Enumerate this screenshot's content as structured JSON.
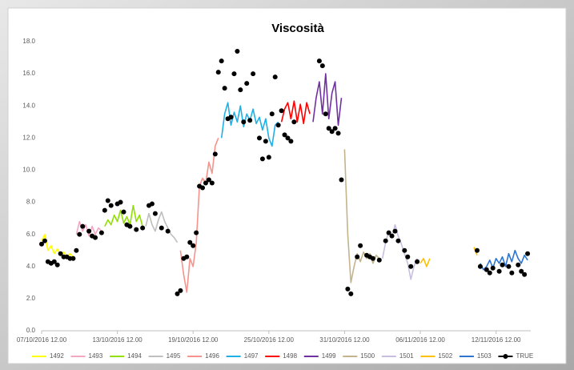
{
  "chart_data": {
    "type": "line",
    "title": "Viscosità",
    "legend": "bottom",
    "xlim": [
      "2016-10-07T12:00",
      "2016-11-15T06:00"
    ],
    "xticks": [
      {
        "value": "2016-10-07T12:00",
        "label": "07/10/2016 12.00"
      },
      {
        "value": "2016-10-13T12:00",
        "label": "13/10/2016 12.00"
      },
      {
        "value": "2016-10-19T12:00",
        "label": "19/10/2016 12.00"
      },
      {
        "value": "2016-10-25T12:00",
        "label": "25/10/2016 12.00"
      },
      {
        "value": "2016-10-31T12:00",
        "label": "31/10/2016 12.00"
      },
      {
        "value": "2016-11-06T12:00",
        "label": "06/11/2016 12.00"
      },
      {
        "value": "2016-11-12T12:00",
        "label": "12/11/2016 12.00"
      }
    ],
    "ylim": [
      0,
      18
    ],
    "yticks": [
      {
        "value": 0,
        "label": "0.0"
      },
      {
        "value": 2,
        "label": "2.0"
      },
      {
        "value": 4,
        "label": "4.0"
      },
      {
        "value": 6,
        "label": "6.0"
      },
      {
        "value": 8,
        "label": "8.0"
      },
      {
        "value": 10,
        "label": "10.0"
      },
      {
        "value": 12,
        "label": "12.0"
      },
      {
        "value": 14,
        "label": "14.0"
      },
      {
        "value": 16,
        "label": "16.0"
      },
      {
        "value": 18,
        "label": "18.0"
      }
    ],
    "series": [
      {
        "name": "1492",
        "color": "#ffff00",
        "x": [
          "2016-10-07T12:00",
          "2016-10-07T18:00",
          "2016-10-08T00:00",
          "2016-10-08T06:00",
          "2016-10-08T12:00",
          "2016-10-08T18:00",
          "2016-10-09T00:00",
          "2016-10-09T06:00",
          "2016-10-09T12:00",
          "2016-10-09T18:00",
          "2016-10-10T00:00"
        ],
        "values": [
          5.6,
          6.0,
          5.0,
          5.3,
          4.8,
          5.1,
          4.7,
          4.9,
          4.6,
          4.8,
          4.6
        ]
      },
      {
        "name": "1493",
        "color": "#f2a7c3",
        "x": [
          "2016-10-10T06:00",
          "2016-10-10T12:00",
          "2016-10-10T18:00",
          "2016-10-11T00:00",
          "2016-10-11T06:00",
          "2016-10-11T12:00",
          "2016-10-11T18:00",
          "2016-10-12T00:00",
          "2016-10-12T06:00"
        ],
        "values": [
          6.0,
          6.8,
          6.2,
          6.6,
          5.9,
          6.5,
          6.0,
          6.4,
          6.2
        ]
      },
      {
        "name": "1494",
        "color": "#92e000",
        "x": [
          "2016-10-12T12:00",
          "2016-10-12T18:00",
          "2016-10-13T00:00",
          "2016-10-13T06:00",
          "2016-10-13T12:00",
          "2016-10-13T18:00",
          "2016-10-14T00:00",
          "2016-10-14T06:00",
          "2016-10-14T12:00",
          "2016-10-14T18:00",
          "2016-10-15T00:00",
          "2016-10-15T06:00",
          "2016-10-15T12:00"
        ],
        "values": [
          6.5,
          6.9,
          6.6,
          7.2,
          6.8,
          7.5,
          6.7,
          7.1,
          6.6,
          7.8,
          6.8,
          7.2,
          6.5
        ]
      },
      {
        "name": "1495",
        "color": "#bfbfbf",
        "x": [
          "2016-10-15T18:00",
          "2016-10-16T00:00",
          "2016-10-16T06:00",
          "2016-10-16T12:00",
          "2016-10-16T18:00",
          "2016-10-17T00:00",
          "2016-10-17T06:00",
          "2016-10-17T12:00",
          "2016-10-17T18:00",
          "2016-10-18T00:00",
          "2016-10-18T06:00"
        ],
        "values": [
          6.5,
          7.3,
          6.6,
          6.2,
          6.9,
          7.4,
          6.8,
          6.4,
          6.0,
          5.8,
          5.5
        ]
      },
      {
        "name": "1496",
        "color": "#f4948c",
        "x": [
          "2016-10-18T12:00",
          "2016-10-18T18:00",
          "2016-10-19T00:00",
          "2016-10-19T06:00",
          "2016-10-19T12:00",
          "2016-10-19T18:00",
          "2016-10-20T00:00",
          "2016-10-20T06:00",
          "2016-10-20T12:00",
          "2016-10-20T18:00",
          "2016-10-21T00:00",
          "2016-10-21T06:00",
          "2016-10-21T12:00"
        ],
        "values": [
          5.0,
          3.5,
          2.4,
          4.5,
          4.0,
          5.5,
          9.0,
          9.5,
          9.2,
          10.5,
          9.8,
          11.5,
          12.0
        ]
      },
      {
        "name": "1497",
        "color": "#1fb0e8",
        "x": [
          "2016-10-21T18:00",
          "2016-10-22T00:00",
          "2016-10-22T06:00",
          "2016-10-22T12:00",
          "2016-10-22T18:00",
          "2016-10-23T00:00",
          "2016-10-23T06:00",
          "2016-10-23T12:00",
          "2016-10-23T18:00",
          "2016-10-24T00:00",
          "2016-10-24T06:00",
          "2016-10-24T12:00",
          "2016-10-24T18:00",
          "2016-10-25T00:00",
          "2016-10-25T06:00",
          "2016-10-25T12:00",
          "2016-10-25T18:00",
          "2016-10-26T00:00",
          "2016-10-26T06:00"
        ],
        "values": [
          12.0,
          13.5,
          14.2,
          12.8,
          13.6,
          13.0,
          14.0,
          12.7,
          13.5,
          13.1,
          13.8,
          12.9,
          13.3,
          12.5,
          13.2,
          12.0,
          11.5,
          12.8,
          13.0
        ]
      },
      {
        "name": "1498",
        "color": "#ff0000",
        "x": [
          "2016-10-26T12:00",
          "2016-10-26T18:00",
          "2016-10-27T00:00",
          "2016-10-27T06:00",
          "2016-10-27T12:00",
          "2016-10-27T18:00",
          "2016-10-28T00:00",
          "2016-10-28T06:00",
          "2016-10-28T12:00",
          "2016-10-28T18:00"
        ],
        "values": [
          13.0,
          13.8,
          14.2,
          13.2,
          14.3,
          13.0,
          14.1,
          12.9,
          14.2,
          13.5
        ]
      },
      {
        "name": "1499",
        "color": "#7030a0",
        "x": [
          "2016-10-29T00:00",
          "2016-10-29T06:00",
          "2016-10-29T12:00",
          "2016-10-29T18:00",
          "2016-10-30T00:00",
          "2016-10-30T06:00",
          "2016-10-30T12:00",
          "2016-10-30T18:00",
          "2016-10-31T00:00",
          "2016-10-31T06:00"
        ],
        "values": [
          13.0,
          14.5,
          15.5,
          13.5,
          16.0,
          13.2,
          14.8,
          15.5,
          12.8,
          14.5
        ]
      },
      {
        "name": "1500",
        "color": "#c4b48c",
        "x": [
          "2016-10-31T12:00",
          "2016-10-31T18:00",
          "2016-11-01T00:00",
          "2016-11-01T06:00",
          "2016-11-01T12:00",
          "2016-11-01T18:00",
          "2016-11-02T00:00",
          "2016-11-02T06:00",
          "2016-11-02T12:00",
          "2016-11-02T18:00",
          "2016-11-03T00:00",
          "2016-11-03T06:00"
        ],
        "values": [
          11.3,
          6.0,
          3.0,
          4.0,
          4.8,
          4.3,
          4.9,
          4.5,
          4.8,
          4.2,
          4.7,
          4.5
        ]
      },
      {
        "name": "1501",
        "color": "#c8bfe0",
        "x": [
          "2016-11-03T12:00",
          "2016-11-03T18:00",
          "2016-11-04T00:00",
          "2016-11-04T06:00",
          "2016-11-04T12:00",
          "2016-11-04T18:00",
          "2016-11-05T00:00",
          "2016-11-05T06:00",
          "2016-11-05T12:00",
          "2016-11-05T18:00",
          "2016-11-06T00:00",
          "2016-11-06T06:00"
        ],
        "values": [
          4.5,
          5.5,
          6.2,
          5.8,
          6.6,
          5.9,
          5.4,
          4.8,
          4.2,
          3.2,
          4.0,
          4.5
        ]
      },
      {
        "name": "1502",
        "color": "#ffc000",
        "x": [
          "2016-11-06T12:00",
          "2016-11-06T18:00",
          "2016-11-07T00:00",
          "2016-11-07T06:00",
          "2016-11-09T00:00",
          "2016-11-10T18:00",
          "2016-11-11T00:00"
        ],
        "values": [
          4.2,
          4.5,
          4.0,
          4.5,
          null,
          5.2,
          4.7
        ]
      },
      {
        "name": "1503",
        "color": "#2e75d0",
        "x": [
          "2016-11-11T06:00",
          "2016-11-11T12:00",
          "2016-11-11T18:00",
          "2016-11-12T00:00",
          "2016-11-12T06:00",
          "2016-11-12T12:00",
          "2016-11-12T18:00",
          "2016-11-13T00:00",
          "2016-11-13T06:00",
          "2016-11-13T12:00",
          "2016-11-13T18:00",
          "2016-11-14T00:00",
          "2016-11-14T06:00",
          "2016-11-14T12:00",
          "2016-11-14T18:00",
          "2016-11-15T00:00"
        ],
        "values": [
          4.2,
          3.8,
          4.0,
          4.4,
          3.9,
          4.5,
          4.2,
          4.6,
          4.0,
          4.8,
          4.3,
          5.0,
          4.5,
          4.2,
          4.7,
          4.4
        ]
      },
      {
        "name": "TRUE",
        "color": "#000000",
        "markers": true,
        "x": [
          "2016-10-07T12:00",
          "2016-10-07T18:00",
          "2016-10-08T00:00",
          "2016-10-08T06:00",
          "2016-10-08T12:00",
          "2016-10-08T18:00",
          "2016-10-09T00:00",
          "2016-10-09T06:00",
          "2016-10-09T12:00",
          "2016-10-09T18:00",
          "2016-10-10T00:00",
          "2016-10-10T06:00",
          "2016-10-10T12:00",
          "2016-10-10T18:00",
          "2016-10-11T06:00",
          "2016-10-11T12:00",
          "2016-10-11T18:00",
          "2016-10-12T06:00",
          "2016-10-12T12:00",
          "2016-10-12T18:00",
          "2016-10-13T00:00",
          "2016-10-13T12:00",
          "2016-10-13T18:00",
          "2016-10-14T00:00",
          "2016-10-14T06:00",
          "2016-10-14T12:00",
          "2016-10-15T00:00",
          "2016-10-15T12:00",
          "2016-10-16T00:00",
          "2016-10-16T06:00",
          "2016-10-16T12:00",
          "2016-10-17T00:00",
          "2016-10-17T12:00",
          "2016-10-18T06:00",
          "2016-10-18T12:00",
          "2016-10-18T18:00",
          "2016-10-19T00:00",
          "2016-10-19T06:00",
          "2016-10-19T12:00",
          "2016-10-19T18:00",
          "2016-10-20T00:00",
          "2016-10-20T06:00",
          "2016-10-20T12:00",
          "2016-10-20T18:00",
          "2016-10-21T00:00",
          "2016-10-21T06:00",
          "2016-10-21T12:00",
          "2016-10-21T18:00",
          "2016-10-22T00:00",
          "2016-10-22T06:00",
          "2016-10-22T12:00",
          "2016-10-22T18:00",
          "2016-10-23T00:00",
          "2016-10-23T06:00",
          "2016-10-23T12:00",
          "2016-10-23T18:00",
          "2016-10-24T00:00",
          "2016-10-24T06:00",
          "2016-10-24T18:00",
          "2016-10-25T00:00",
          "2016-10-25T06:00",
          "2016-10-25T12:00",
          "2016-10-25T18:00",
          "2016-10-26T00:00",
          "2016-10-26T06:00",
          "2016-10-26T12:00",
          "2016-10-26T18:00",
          "2016-10-27T00:00",
          "2016-10-27T06:00",
          "2016-10-27T12:00",
          "2016-10-29T12:00",
          "2016-10-29T18:00",
          "2016-10-30T00:00",
          "2016-10-30T06:00",
          "2016-10-30T12:00",
          "2016-10-30T18:00",
          "2016-10-31T00:00",
          "2016-10-31T06:00",
          "2016-10-31T18:00",
          "2016-11-01T00:00",
          "2016-11-01T12:00",
          "2016-11-01T18:00",
          "2016-11-02T06:00",
          "2016-11-02T12:00",
          "2016-11-02T18:00",
          "2016-11-03T06:00",
          "2016-11-03T18:00",
          "2016-11-04T00:00",
          "2016-11-04T06:00",
          "2016-11-04T12:00",
          "2016-11-04T18:00",
          "2016-11-05T06:00",
          "2016-11-05T12:00",
          "2016-11-05T18:00",
          "2016-11-06T06:00",
          "2016-11-11T00:00",
          "2016-11-11T06:00",
          "2016-11-11T18:00",
          "2016-11-12T00:00",
          "2016-11-12T06:00",
          "2016-11-12T18:00",
          "2016-11-13T00:00",
          "2016-11-13T12:00",
          "2016-11-13T18:00",
          "2016-11-14T06:00",
          "2016-11-14T12:00",
          "2016-11-14T18:00",
          "2016-11-15T00:00"
        ],
        "values": [
          5.4,
          5.6,
          4.3,
          4.2,
          4.3,
          4.1,
          4.8,
          4.6,
          4.6,
          4.5,
          4.5,
          5.0,
          6.0,
          6.5,
          6.2,
          5.9,
          5.8,
          6.1,
          7.5,
          8.1,
          7.8,
          7.9,
          8.0,
          7.4,
          6.6,
          6.5,
          6.3,
          6.4,
          7.8,
          7.9,
          7.3,
          6.4,
          6.2,
          2.3,
          2.5,
          4.5,
          4.6,
          5.5,
          5.3,
          6.1,
          9.0,
          8.9,
          9.2,
          9.4,
          9.2,
          11.0,
          16.1,
          16.8,
          15.1,
          13.2,
          13.3,
          16.0,
          17.4,
          15.0,
          13.0,
          15.4,
          13.1,
          16.0,
          12.0,
          10.7,
          11.8,
          10.8,
          13.5,
          15.8,
          12.8,
          13.7,
          12.2,
          12.0,
          11.8,
          13.0,
          16.8,
          16.5,
          13.5,
          12.6,
          12.4,
          12.6,
          12.3,
          9.4,
          2.6,
          2.3,
          4.6,
          5.3,
          4.7,
          4.6,
          4.5,
          4.4,
          5.6,
          6.1,
          5.9,
          6.2,
          5.6,
          5.0,
          4.6,
          4.0,
          4.3,
          5.0,
          4.0,
          3.8,
          3.6,
          3.9,
          3.7,
          4.1,
          4.0,
          3.6,
          4.1,
          3.7,
          3.5,
          4.8
        ]
      }
    ]
  }
}
